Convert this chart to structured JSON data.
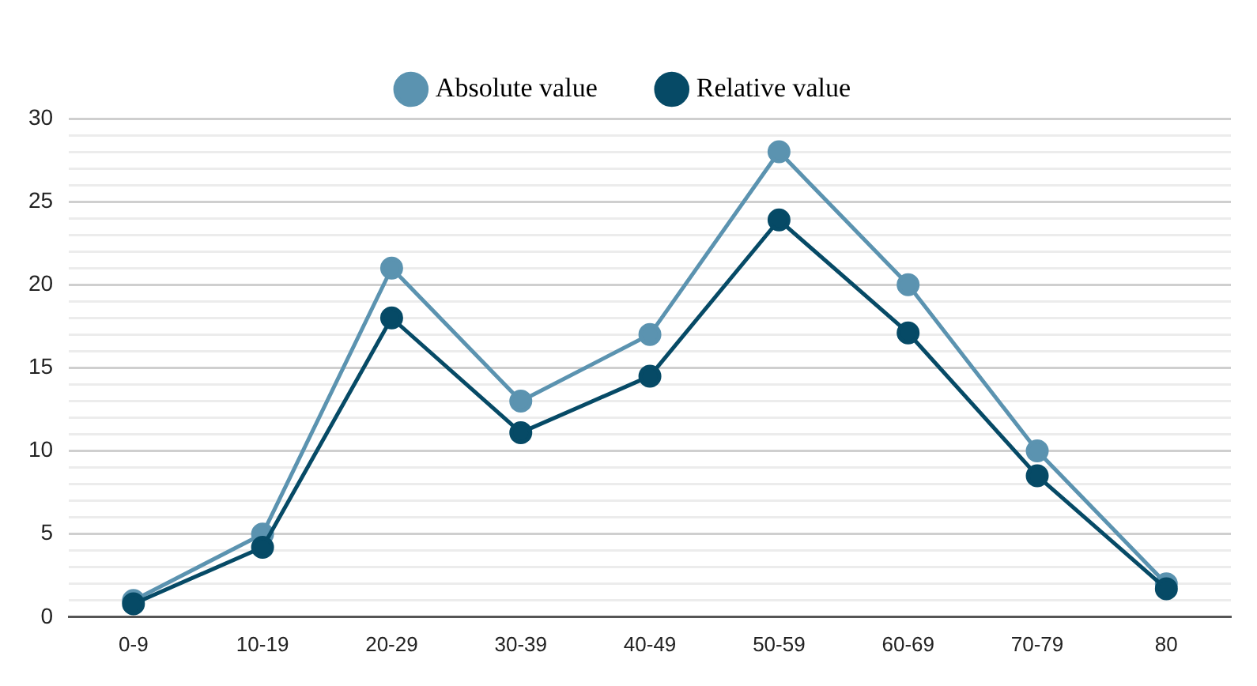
{
  "chart_data": {
    "type": "line",
    "categories": [
      "0-9",
      "10-19",
      "20-29",
      "30-39",
      "40-49",
      "50-59",
      "60-69",
      "70-79",
      "80"
    ],
    "series": [
      {
        "name": "Absolute value",
        "color": "#5b93b0",
        "values": [
          1,
          5,
          21,
          13,
          17,
          28,
          20,
          10,
          2
        ]
      },
      {
        "name": "Relative value",
        "color": "#064a66",
        "values": [
          0.8,
          4.2,
          18,
          11.1,
          14.5,
          23.9,
          17.1,
          8.5,
          1.7
        ]
      }
    ],
    "ylim": [
      0,
      30
    ],
    "yticks": [
      0,
      {
        "value": 1,
        "label": null
      },
      {
        "value": 2,
        "label": null
      },
      {
        "value": 3,
        "label": null
      },
      {
        "value": 4,
        "label": null
      },
      5,
      {
        "value": 6,
        "label": null
      },
      {
        "value": 7,
        "label": null
      },
      {
        "value": 8,
        "label": null
      },
      {
        "value": 9,
        "label": null
      },
      10,
      {
        "value": 11,
        "label": null
      },
      {
        "value": 12,
        "label": null
      },
      {
        "value": 13,
        "label": null
      },
      {
        "value": 14,
        "label": null
      },
      15,
      {
        "value": 16,
        "label": null
      },
      {
        "value": 17,
        "label": null
      },
      {
        "value": 18,
        "label": null
      },
      {
        "value": 19,
        "label": null
      },
      20,
      {
        "value": 21,
        "label": null
      },
      {
        "value": 22,
        "label": null
      },
      {
        "value": 23,
        "label": null
      },
      {
        "value": 24,
        "label": null
      },
      25,
      {
        "value": 26,
        "label": null
      },
      {
        "value": 27,
        "label": null
      },
      {
        "value": 28,
        "label": null
      },
      {
        "value": 29,
        "label": null
      },
      30
    ],
    "grid": "y",
    "legend": "top",
    "marker": "circle",
    "line_style": "solid"
  }
}
